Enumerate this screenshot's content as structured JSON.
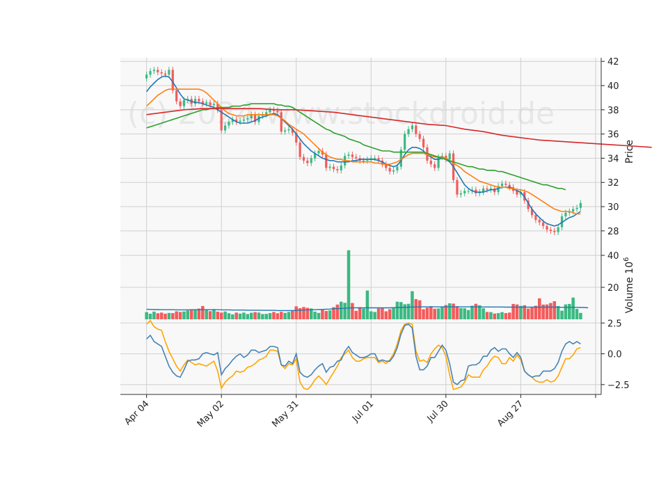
{
  "chart_data": {
    "type": "candlestick",
    "watermark": "(c) 2024 www.stockdroid.de",
    "colors": {
      "up": "#3cb982",
      "down": "#f45b5b",
      "ma_short": "#1f77b4",
      "ma_mid": "#ff7f0e",
      "ma_long": "#2ca02c",
      "ma_200": "#d62728",
      "volume_avg": "#1f77b4",
      "osc_line": "#4682b4",
      "osc_signal": "#ffa500",
      "panel_bg": "#f8f8f8",
      "grid": "#cfcfcf"
    },
    "x_ticks": [
      {
        "label": "Apr 04",
        "i": 0
      },
      {
        "label": "May 02",
        "i": 20
      },
      {
        "label": "May 31",
        "i": 40
      },
      {
        "label": "Jul 01",
        "i": 60
      },
      {
        "label": "Jul 30",
        "i": 80
      },
      {
        "label": "Aug 27",
        "i": 100
      },
      {
        "label": "",
        "i": 120
      }
    ],
    "x_range": [
      -7,
      121.5
    ],
    "price": {
      "ylabel": "Price",
      "ylim": [
        26.9,
        42.3
      ],
      "yticks": [
        28,
        30,
        32,
        34,
        36,
        38,
        40,
        42
      ],
      "closes": [
        40.9,
        41.2,
        41.3,
        41.1,
        41.0,
        40.9,
        41.3,
        39.6,
        38.7,
        38.3,
        38.8,
        38.9,
        38.5,
        38.9,
        38.7,
        38.5,
        38.6,
        38.4,
        38.5,
        38.0,
        36.3,
        36.7,
        37.0,
        37.2,
        37.0,
        37.1,
        37.2,
        37.3,
        37.6,
        37.0,
        37.5,
        37.6,
        37.8,
        38.0,
        37.9,
        37.8,
        36.2,
        36.3,
        36.4,
        36.1,
        35.3,
        34.1,
        33.8,
        33.6,
        34.0,
        34.4,
        34.6,
        34.3,
        33.2,
        33.3,
        33.1,
        33.0,
        33.4,
        34.2,
        34.3,
        34.1,
        34.0,
        33.8,
        33.8,
        33.9,
        34.0,
        34.0,
        33.8,
        33.5,
        33.2,
        32.9,
        33.0,
        33.3,
        34.7,
        36.0,
        36.4,
        36.7,
        36.0,
        35.6,
        34.9,
        33.8,
        33.5,
        33.2,
        34.1,
        34.2,
        33.9,
        34.4,
        32.2,
        31.0,
        31.1,
        31.3,
        31.3,
        31.4,
        31.1,
        31.2,
        31.5,
        31.4,
        31.5,
        31.2,
        31.7,
        31.9,
        31.8,
        31.6,
        31.3,
        31.0,
        31.2,
        30.5,
        29.8,
        29.3,
        28.9,
        28.7,
        28.4,
        28.1,
        28.0,
        27.9,
        28.3,
        29.2,
        29.5,
        29.6,
        29.8,
        29.9,
        30.3
      ]
    },
    "moving_averages": [
      {
        "color": "#1f77b4",
        "values": [
          39.5,
          39.9,
          40.2,
          40.5,
          40.7,
          40.8,
          40.7,
          40.3,
          39.8,
          39.3,
          38.9,
          38.8,
          38.7,
          38.6,
          38.6,
          38.5,
          38.4,
          38.3,
          38.2,
          38.0,
          37.8,
          37.6,
          37.4,
          37.2,
          37.0,
          36.9,
          36.9,
          36.9,
          37.0,
          37.1,
          37.3,
          37.4,
          37.5,
          37.6,
          37.7,
          37.6,
          37.3,
          37.0,
          36.7,
          36.4,
          36.0,
          35.6,
          35.2,
          34.9,
          34.6,
          34.4,
          34.2,
          34.0,
          33.9,
          33.8,
          33.8,
          33.7,
          33.7,
          33.7,
          33.7,
          33.8,
          33.8,
          33.9,
          33.9,
          33.9,
          33.9,
          33.9,
          33.8,
          33.7,
          33.5,
          33.4,
          33.3,
          33.4,
          33.8,
          34.3,
          34.7,
          34.9,
          34.9,
          34.8,
          34.6,
          34.3,
          34.1,
          33.9,
          33.9,
          34.0,
          33.9,
          33.7,
          33.3,
          32.8,
          32.3,
          31.8,
          31.5,
          31.3,
          31.2,
          31.2,
          31.2,
          31.3,
          31.4,
          31.4,
          31.5,
          31.6,
          31.6,
          31.6,
          31.5,
          31.3,
          31.2,
          30.8,
          30.3,
          29.8,
          29.4,
          29.1,
          28.8,
          28.6,
          28.5,
          28.4,
          28.5,
          28.7,
          28.9,
          29.1,
          29.2,
          29.4,
          29.6
        ]
      },
      {
        "color": "#ff7f0e",
        "values": [
          38.3,
          38.6,
          38.9,
          39.2,
          39.4,
          39.6,
          39.7,
          39.7,
          39.7,
          39.7,
          39.7,
          39.7,
          39.7,
          39.7,
          39.7,
          39.6,
          39.4,
          39.1,
          38.8,
          38.5,
          38.2,
          37.9,
          37.7,
          37.6,
          37.5,
          37.5,
          37.5,
          37.6,
          37.6,
          37.6,
          37.6,
          37.6,
          37.6,
          37.6,
          37.6,
          37.5,
          37.3,
          37.1,
          36.8,
          36.6,
          36.4,
          36.2,
          36.0,
          35.7,
          35.4,
          35.1,
          34.8,
          34.5,
          34.3,
          34.1,
          34.0,
          33.9,
          33.9,
          33.8,
          33.8,
          33.7,
          33.7,
          33.7,
          33.7,
          33.7,
          33.7,
          33.6,
          33.6,
          33.5,
          33.5,
          33.5,
          33.6,
          33.7,
          33.9,
          34.1,
          34.3,
          34.4,
          34.4,
          34.4,
          34.4,
          34.3,
          34.2,
          34.1,
          34.1,
          34.1,
          34.0,
          33.8,
          33.6,
          33.4,
          33.2,
          32.9,
          32.7,
          32.5,
          32.3,
          32.1,
          32.0,
          31.9,
          31.8,
          31.7,
          31.6,
          31.6,
          31.6,
          31.5,
          31.5,
          31.4,
          31.4,
          31.3,
          31.2,
          31.0,
          30.8,
          30.6,
          30.4,
          30.2,
          30.0,
          29.8,
          29.7,
          29.6,
          29.6,
          29.6,
          29.5,
          29.4,
          29.4
        ]
      },
      {
        "color": "#2ca02c",
        "values": [
          36.5,
          36.6,
          36.7,
          36.8,
          36.9,
          37.0,
          37.1,
          37.2,
          37.3,
          37.4,
          37.5,
          37.6,
          37.7,
          37.8,
          37.9,
          38.0,
          38.0,
          38.1,
          38.1,
          38.2,
          38.2,
          38.2,
          38.2,
          38.3,
          38.3,
          38.3,
          38.4,
          38.4,
          38.5,
          38.5,
          38.5,
          38.5,
          38.5,
          38.5,
          38.5,
          38.4,
          38.4,
          38.3,
          38.3,
          38.2,
          38.0,
          37.8,
          37.6,
          37.4,
          37.2,
          37.0,
          36.8,
          36.6,
          36.4,
          36.3,
          36.1,
          36.0,
          35.9,
          35.8,
          35.6,
          35.5,
          35.4,
          35.3,
          35.1,
          35.0,
          34.9,
          34.8,
          34.7,
          34.6,
          34.6,
          34.6,
          34.5,
          34.5,
          34.5,
          34.5,
          34.5,
          34.5,
          34.5,
          34.5,
          34.5,
          34.4,
          34.3,
          34.2,
          34.1,
          34.0,
          33.9,
          33.8,
          33.7,
          33.6,
          33.5,
          33.4,
          33.3,
          33.3,
          33.2,
          33.1,
          33.1,
          33.0,
          33.0,
          33.0,
          32.9,
          32.9,
          32.8,
          32.7,
          32.6,
          32.5,
          32.4,
          32.3,
          32.2,
          32.1,
          32.0,
          31.9,
          31.8,
          31.8,
          31.7,
          31.6,
          31.5,
          31.5,
          31.4
        ]
      },
      {
        "color": "#d62728",
        "values": [
          37.6,
          37.8,
          38.0,
          38.1,
          38.1,
          38.1,
          38.1,
          38.0,
          38.0,
          37.9,
          37.8,
          37.6,
          37.4,
          37.2,
          37.0,
          36.8,
          36.7,
          36.4,
          36.2,
          35.9,
          35.7,
          35.5,
          35.4,
          35.3,
          35.2,
          35.1,
          35.0,
          34.9
        ]
      }
    ],
    "ma_200_x": [
      0,
      5,
      10,
      15,
      20,
      25,
      30,
      35,
      40,
      45,
      50,
      55,
      60,
      65,
      70,
      75,
      80,
      85,
      90,
      95,
      100,
      105,
      110,
      115,
      120,
      125,
      130,
      135
    ],
    "volume": {
      "ylabel": "Volume  10",
      "ylabel_sup": "6",
      "ylim": [
        0,
        47
      ],
      "yticks": [
        20,
        40
      ],
      "values": [
        4.5,
        3.5,
        4.8,
        3.8,
        4.2,
        3.5,
        4.0,
        3.9,
        5.0,
        4.6,
        4.9,
        5.5,
        5.8,
        5.9,
        6.7,
        8.3,
        6.2,
        5.1,
        6.4,
        4.8,
        4.2,
        4.9,
        3.8,
        3.1,
        4.2,
        3.6,
        4.2,
        3.3,
        4.1,
        4.5,
        4.2,
        3.3,
        3.4,
        3.9,
        4.6,
        3.8,
        4.7,
        4.0,
        4.6,
        5.2,
        8.1,
        7.0,
        7.7,
        7.2,
        6.8,
        4.8,
        4.0,
        6.0,
        5.2,
        5.6,
        7.6,
        9.2,
        11.0,
        10.3,
        43.2,
        10.2,
        5.3,
        7.6,
        6.7,
        18.0,
        5.0,
        4.6,
        6.8,
        7.4,
        5.0,
        6.3,
        7.1,
        11.0,
        10.8,
        9.4,
        9.7,
        17.6,
        12.6,
        11.9,
        6.3,
        7.3,
        8.2,
        6.6,
        6.8,
        7.7,
        8.9,
        10.0,
        9.8,
        8.2,
        7.0,
        6.9,
        5.8,
        8.5,
        9.7,
        8.8,
        6.9,
        4.6,
        4.5,
        3.6,
        3.9,
        4.5,
        3.9,
        4.2,
        9.6,
        9.3,
        8.4,
        8.8,
        6.7,
        7.3,
        8.5,
        13.1,
        9.2,
        9.3,
        10.2,
        11.3,
        8.3,
        5.4,
        9.3,
        9.6,
        13.6,
        6.5,
        4.0
      ],
      "avg": [
        6.3,
        6.2,
        6.1,
        6.1,
        6.0,
        6.0,
        6.0,
        6.0,
        5.9,
        5.9,
        5.9,
        5.9,
        6.0,
        6.0,
        6.0,
        6.0,
        6.0,
        6.0,
        6.0,
        6.0,
        5.9,
        5.9,
        5.9,
        5.8,
        5.8,
        5.8,
        5.8,
        5.7,
        5.7,
        5.7,
        5.7,
        5.6,
        5.6,
        5.6,
        5.6,
        5.5,
        5.5,
        5.5,
        5.5,
        5.5,
        5.6,
        5.7,
        5.8,
        5.9,
        5.9,
        6.0,
        6.1,
        6.2,
        6.3,
        6.4,
        6.6,
        6.7,
        6.8,
        6.9,
        7.1,
        7.2,
        7.2,
        7.2,
        7.2,
        7.2,
        7.2,
        7.2,
        7.2,
        7.2,
        7.2,
        7.2,
        7.3,
        7.4,
        7.4,
        7.5,
        7.6,
        7.7,
        7.7,
        7.8,
        7.8,
        7.8,
        7.8,
        7.8,
        7.8,
        7.8,
        7.8,
        7.8,
        7.8,
        7.8,
        7.8,
        7.8,
        7.8,
        7.8,
        7.8,
        7.7,
        7.7,
        7.7,
        7.7,
        7.7,
        7.7,
        7.7,
        7.6,
        7.6,
        7.6,
        7.6,
        7.6,
        7.6,
        7.6,
        7.6,
        7.6,
        7.6,
        7.6,
        7.6,
        7.6,
        7.6,
        7.6,
        7.5,
        7.5,
        7.5,
        7.5,
        7.5,
        7.4,
        7.4,
        7.2
      ]
    },
    "oscillator": {
      "ylim": [
        -3.3,
        2.8
      ],
      "yticks": [
        -2.5,
        0.0,
        2.5
      ],
      "ytick_labels": [
        "−2.5",
        "0.0",
        "2.5"
      ],
      "line": [
        1.2,
        1.5,
        1.0,
        0.8,
        0.6,
        -0.2,
        -1.0,
        -1.5,
        -1.8,
        -1.9,
        -1.3,
        -0.6,
        -0.5,
        -0.5,
        -0.4,
        0.0,
        0.1,
        0.0,
        -0.1,
        0.1,
        -1.7,
        -1.2,
        -0.9,
        -0.5,
        -0.2,
        0.0,
        -0.3,
        -0.1,
        0.3,
        0.3,
        0.1,
        0.2,
        0.3,
        0.6,
        0.6,
        0.5,
        -0.9,
        -1.0,
        -0.6,
        -0.8,
        0.0,
        -1.5,
        -1.8,
        -1.9,
        -1.7,
        -1.3,
        -1.0,
        -0.8,
        -1.5,
        -1.1,
        -1.0,
        -0.6,
        -0.5,
        0.2,
        0.6,
        0.1,
        -0.1,
        -0.3,
        -0.3,
        -0.2,
        0.0,
        0.0,
        -0.6,
        -0.5,
        -0.6,
        -0.6,
        -0.2,
        0.5,
        1.6,
        2.3,
        2.4,
        2.1,
        -0.2,
        -1.3,
        -1.3,
        -1.0,
        -0.3,
        -0.3,
        0.2,
        0.7,
        0.3,
        -0.8,
        -2.3,
        -2.5,
        -2.2,
        -2.1,
        -1.0,
        -0.9,
        -0.9,
        -0.7,
        -0.2,
        -0.2,
        0.3,
        0.5,
        0.2,
        0.4,
        0.4,
        0.0,
        -0.3,
        0.1,
        -0.3,
        -1.4,
        -1.7,
        -1.9,
        -1.8,
        -1.8,
        -1.4,
        -1.4,
        -1.4,
        -1.2,
        -0.7,
        0.2,
        0.8,
        1.0,
        0.8,
        1.0,
        0.8
      ],
      "signal": [
        2.4,
        2.7,
        2.2,
        2.0,
        1.9,
        1.0,
        0.2,
        -0.4,
        -1.0,
        -1.4,
        -0.9,
        -0.5,
        -0.7,
        -0.9,
        -0.8,
        -0.9,
        -1.0,
        -0.8,
        -0.6,
        -1.4,
        -2.8,
        -2.3,
        -2.0,
        -1.8,
        -1.4,
        -1.5,
        -1.4,
        -1.1,
        -1.0,
        -0.8,
        -0.5,
        -0.4,
        -0.2,
        0.3,
        0.3,
        0.2,
        -0.9,
        -1.2,
        -0.8,
        -0.9,
        -0.4,
        -2.3,
        -2.8,
        -2.9,
        -2.6,
        -2.1,
        -1.8,
        -2.1,
        -2.5,
        -2.0,
        -1.5,
        -1.0,
        -0.3,
        0.0,
        0.3,
        -0.3,
        -0.6,
        -0.6,
        -0.4,
        -0.3,
        -0.3,
        -0.3,
        -0.7,
        -0.6,
        -0.8,
        -0.5,
        0.0,
        0.8,
        1.9,
        2.4,
        2.5,
        2.4,
        0.2,
        -0.6,
        -0.5,
        -0.7,
        0.0,
        0.4,
        0.7,
        0.5,
        -0.2,
        -1.7,
        -2.9,
        -2.8,
        -2.7,
        -2.3,
        -1.7,
        -1.9,
        -1.9,
        -1.9,
        -1.3,
        -1.0,
        -0.5,
        -0.2,
        -0.3,
        -0.8,
        -0.8,
        -0.3,
        -0.6,
        -0.1,
        -0.5,
        -1.4,
        -1.7,
        -1.9,
        -2.2,
        -2.3,
        -2.3,
        -2.1,
        -2.3,
        -2.2,
        -1.8,
        -1.1,
        -0.4,
        -0.4,
        -0.1,
        0.4,
        0.5
      ]
    }
  }
}
